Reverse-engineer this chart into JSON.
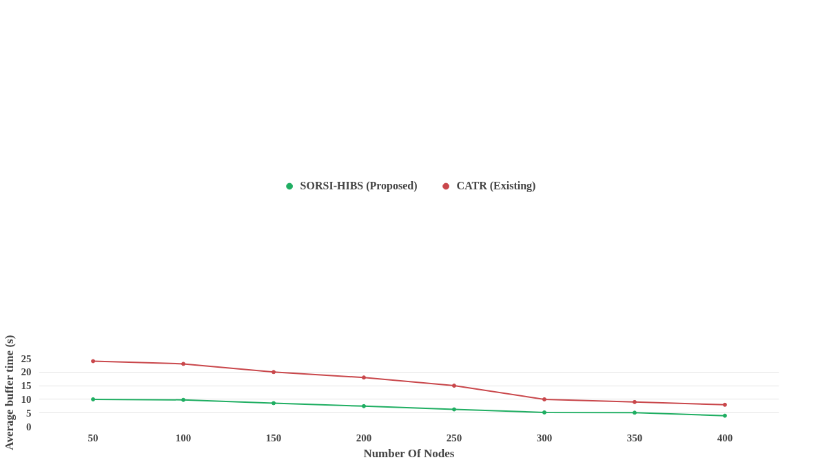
{
  "chart_data": {
    "type": "line",
    "xlabel": "Number Of Nodes",
    "ylabel": "Average buffer time (s)",
    "categories": [
      "50",
      "100",
      "150",
      "200",
      "250",
      "300",
      "350",
      "400"
    ],
    "series": [
      {
        "name": "SORSI-HIBS (Proposed)",
        "color": "#1fae62",
        "values": [
          10,
          9.8,
          8.6,
          7.5,
          6.3,
          5.2,
          5.1,
          4.0
        ]
      },
      {
        "name": "CATR (Existing)",
        "color": "#c9474b",
        "values": [
          24,
          23,
          20,
          18,
          15,
          10,
          9,
          8
        ]
      }
    ],
    "ylim": [
      0,
      25
    ],
    "yticks": [
      0,
      5,
      10,
      15,
      20,
      25
    ],
    "grid": "y",
    "legend": "top",
    "marker": "circle",
    "line_style": "solid"
  }
}
